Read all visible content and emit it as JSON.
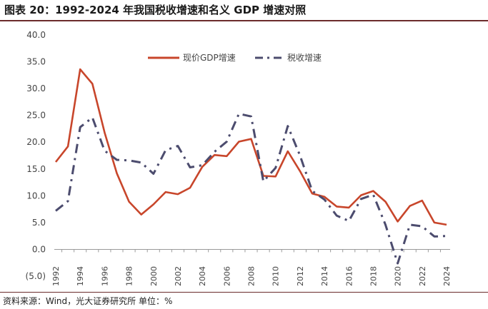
{
  "header": {
    "title": "图表 20：1992-2024 年我国税收增速和名义 GDP 增速对照"
  },
  "footer": {
    "source": "资料来源：Wind，光大证券研究所  单位：%"
  },
  "chart_data": {
    "type": "line",
    "title": "图表 20：1992-2024 年我国税收增速和名义 GDP 增速对照",
    "xlabel": "",
    "ylabel": "",
    "ylim": [
      -5,
      40
    ],
    "ytick_labels": [
      "(5.0)",
      "0.0",
      "5.0",
      "10.0",
      "15.0",
      "20.0",
      "25.0",
      "30.0",
      "35.0",
      "40.0"
    ],
    "ytick_values": [
      -5,
      0,
      5,
      10,
      15,
      20,
      25,
      30,
      35,
      40
    ],
    "xtick_labels": [
      "1992",
      "1994",
      "1996",
      "1998",
      "2000",
      "2002",
      "2004",
      "2006",
      "2008",
      "2010",
      "2012",
      "2014",
      "2016",
      "2018",
      "2020",
      "2022",
      "2024"
    ],
    "x": [
      1992,
      1993,
      1994,
      1995,
      1996,
      1997,
      1998,
      1999,
      2000,
      2001,
      2002,
      2003,
      2004,
      2005,
      2006,
      2007,
      2008,
      2009,
      2010,
      2011,
      2012,
      2013,
      2014,
      2015,
      2016,
      2017,
      2018,
      2019,
      2020,
      2021,
      2022,
      2023,
      2024
    ],
    "grid": false,
    "legend": "top-center",
    "series": [
      {
        "name": "现价GDP增速",
        "color": "#c8462b",
        "style": "solid",
        "values": [
          16.3,
          19.2,
          33.6,
          30.9,
          21.8,
          14.2,
          8.9,
          6.5,
          8.4,
          10.7,
          10.3,
          11.5,
          15.4,
          17.6,
          17.4,
          20.1,
          20.6,
          13.7,
          13.6,
          18.3,
          14.6,
          10.4,
          9.8,
          8.0,
          7.8,
          10.1,
          10.9,
          8.9,
          5.2,
          8.1,
          9.1,
          5.0,
          4.6
        ]
      },
      {
        "name": "税收增速",
        "color": "#4c4c6e",
        "style": "dashdot",
        "values": [
          7.2,
          9.0,
          22.8,
          24.6,
          18.4,
          16.7,
          16.6,
          16.2,
          14.1,
          18.5,
          19.3,
          15.3,
          15.7,
          18.2,
          20.1,
          25.3,
          24.8,
          12.7,
          15.2,
          23.0,
          17.5,
          10.9,
          9.3,
          6.3,
          5.3,
          9.4,
          10.2,
          4.6,
          -2.6,
          4.6,
          4.3,
          2.4,
          2.5
        ]
      }
    ]
  }
}
